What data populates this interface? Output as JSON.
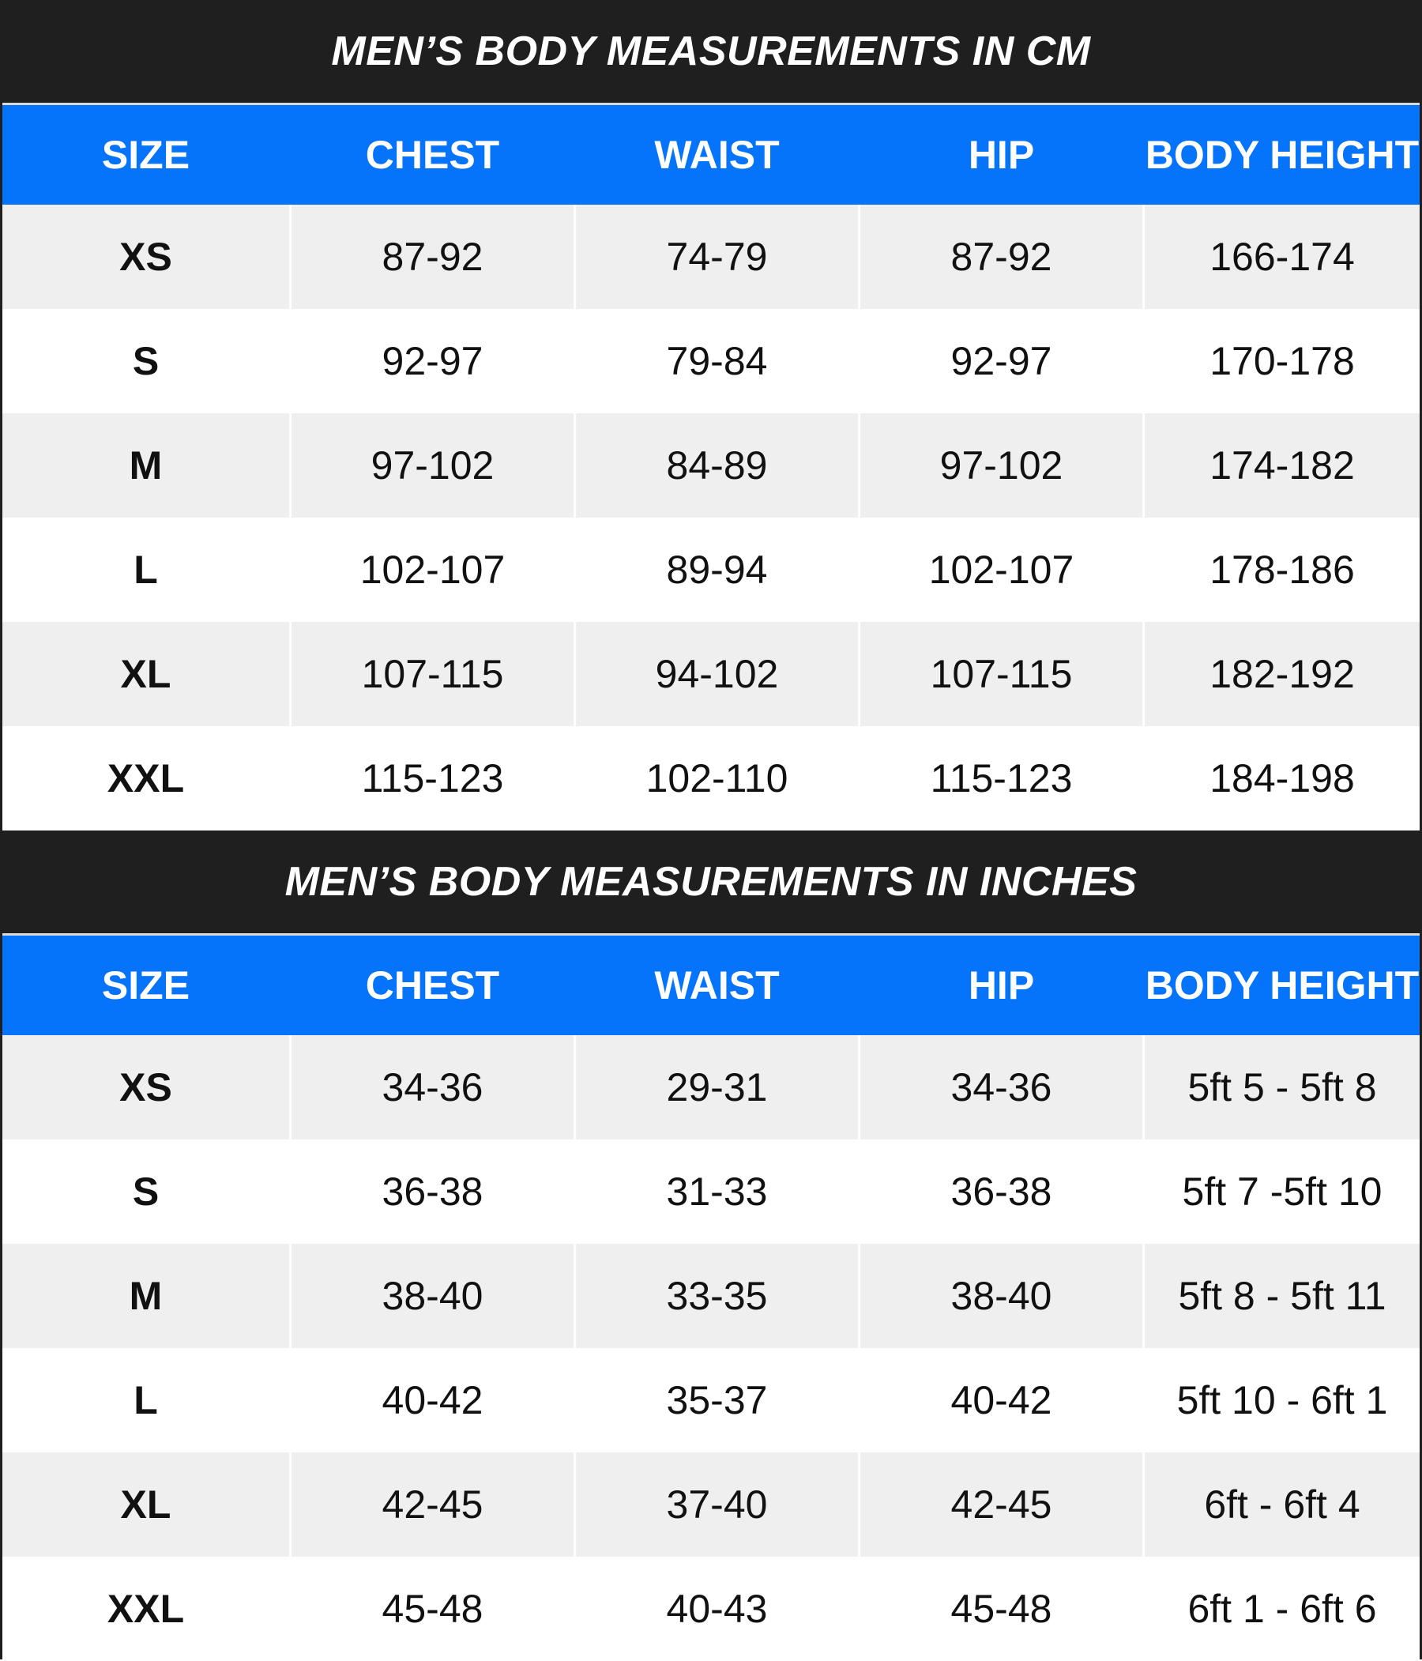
{
  "colors": {
    "title_bg": "#1f1f1f",
    "header_bg": "#0574fb",
    "row_alt_bg": "#efefef",
    "row_bg": "#ffffff",
    "text": "#111111"
  },
  "tables": [
    {
      "title": "MEN’S BODY MEASUREMENTS IN CM",
      "headers": [
        "SIZE",
        "CHEST",
        "WAIST",
        "HIP",
        "BODY HEIGHT"
      ],
      "rows": [
        [
          "XS",
          "87-92",
          "74-79",
          "87-92",
          "166-174"
        ],
        [
          "S",
          "92-97",
          "79-84",
          "92-97",
          "170-178"
        ],
        [
          "M",
          "97-102",
          "84-89",
          "97-102",
          "174-182"
        ],
        [
          "L",
          "102-107",
          "89-94",
          "102-107",
          "178-186"
        ],
        [
          "XL",
          "107-115",
          "94-102",
          "107-115",
          "182-192"
        ],
        [
          "XXL",
          "115-123",
          "102-110",
          "115-123",
          "184-198"
        ]
      ]
    },
    {
      "title": "MEN’S BODY MEASUREMENTS IN INCHES",
      "headers": [
        "SIZE",
        "CHEST",
        "WAIST",
        "HIP",
        "BODY HEIGHT"
      ],
      "rows": [
        [
          "XS",
          "34-36",
          "29-31",
          "34-36",
          "5ft 5 - 5ft 8"
        ],
        [
          "S",
          "36-38",
          "31-33",
          "36-38",
          "5ft 7 -5ft 10"
        ],
        [
          "M",
          "38-40",
          "33-35",
          "38-40",
          "5ft 8 - 5ft 11"
        ],
        [
          "L",
          "40-42",
          "35-37",
          "40-42",
          "5ft 10 - 6ft 1"
        ],
        [
          "XL",
          "42-45",
          "37-40",
          "42-45",
          "6ft - 6ft 4"
        ],
        [
          "XXL",
          "45-48",
          "40-43",
          "45-48",
          "6ft 1 - 6ft 6"
        ]
      ]
    }
  ]
}
